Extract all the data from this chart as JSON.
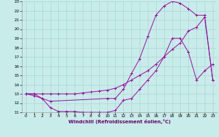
{
  "bg_color": "#c8ecea",
  "grid_color": "#a8d4d4",
  "line_color": "#990099",
  "xlabel": "Windchill (Refroidissement éolien,°C)",
  "xlim": [
    -0.5,
    23.5
  ],
  "ylim": [
    11,
    23
  ],
  "xticks": [
    0,
    1,
    2,
    3,
    4,
    5,
    6,
    7,
    8,
    9,
    10,
    11,
    12,
    13,
    14,
    15,
    16,
    17,
    18,
    19,
    20,
    21,
    22,
    23
  ],
  "yticks": [
    11,
    12,
    13,
    14,
    15,
    16,
    17,
    18,
    19,
    20,
    21,
    22,
    23
  ],
  "line1_x": [
    0,
    1,
    2,
    3,
    4,
    5,
    6,
    7,
    8,
    9,
    10,
    11,
    12,
    13,
    14,
    15,
    16,
    17,
    18,
    19,
    20,
    21,
    22,
    23
  ],
  "line1_y": [
    13.0,
    12.8,
    12.5,
    11.5,
    11.1,
    11.1,
    11.1,
    11.0,
    11.0,
    11.0,
    11.0,
    11.2,
    12.3,
    12.5,
    13.5,
    14.5,
    15.5,
    17.0,
    19.0,
    19.0,
    17.5,
    14.5,
    15.5,
    16.2
  ],
  "line2_x": [
    0,
    1,
    2,
    3,
    4,
    5,
    6,
    7,
    8,
    9,
    10,
    11,
    12,
    13,
    14,
    15,
    16,
    17,
    18,
    19,
    20,
    21,
    22,
    23
  ],
  "line2_y": [
    13.0,
    13.0,
    13.0,
    13.0,
    13.0,
    13.0,
    13.0,
    13.1,
    13.2,
    13.3,
    13.4,
    13.6,
    14.0,
    14.5,
    15.0,
    15.5,
    16.2,
    17.0,
    17.8,
    18.5,
    19.8,
    20.2,
    21.3,
    14.5
  ],
  "line3_x": [
    0,
    1,
    2,
    3,
    10,
    11,
    12,
    13,
    14,
    15,
    16,
    17,
    18,
    19,
    20,
    21,
    22,
    23
  ],
  "line3_y": [
    13.0,
    13.0,
    12.5,
    12.2,
    12.5,
    12.5,
    13.5,
    15.2,
    16.8,
    19.2,
    21.5,
    22.5,
    23.0,
    22.8,
    22.2,
    21.5,
    21.5,
    14.5
  ]
}
